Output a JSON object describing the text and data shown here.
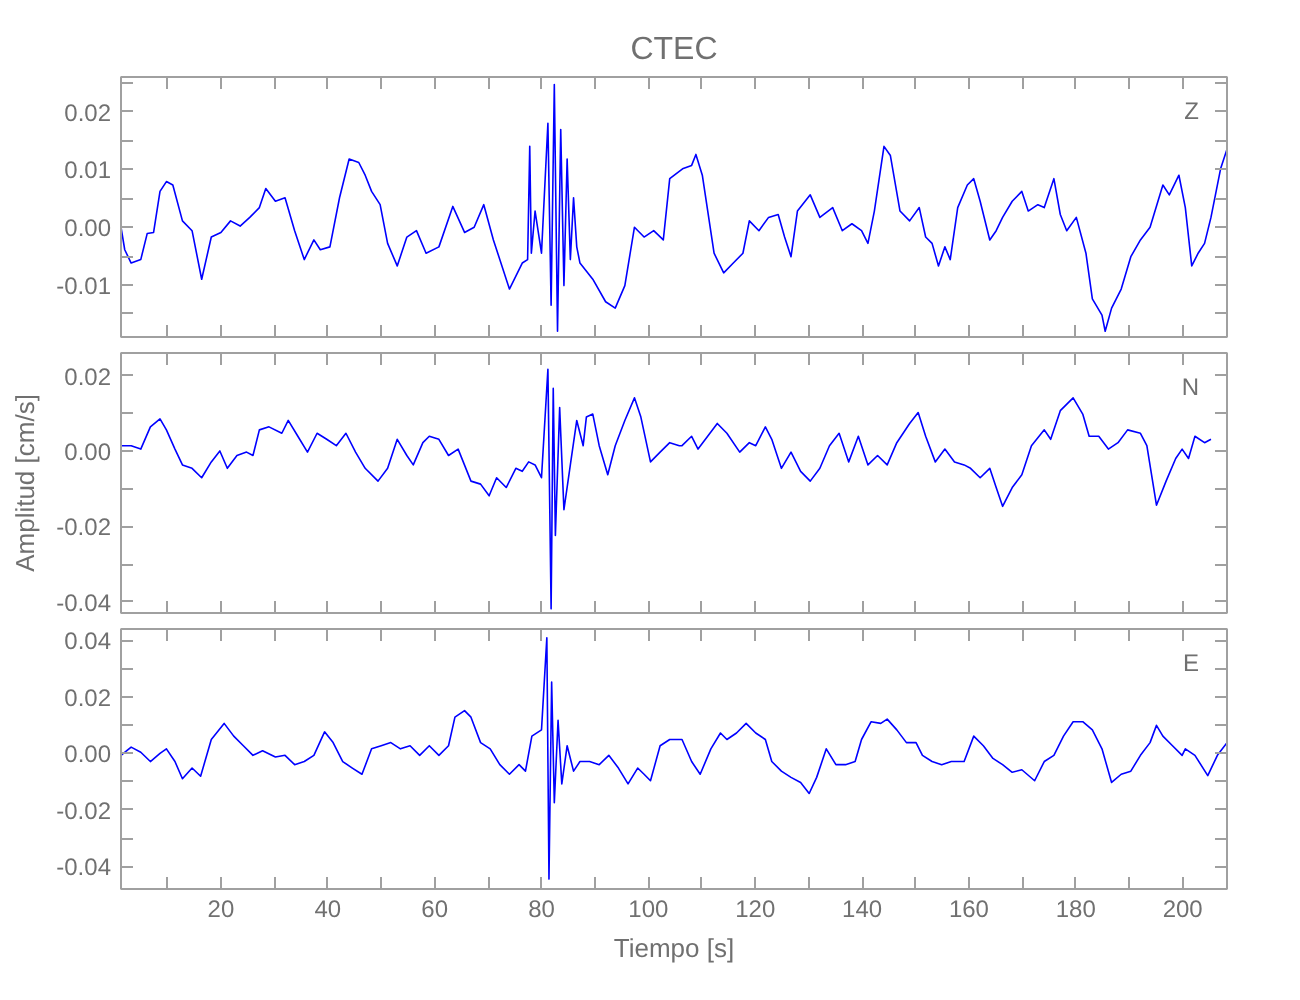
{
  "chart_data": [
    {
      "type": "line",
      "title": "CTEC",
      "annotations": [
        "Z"
      ],
      "tick_labels": "y",
      "xlim": [
        1.3,
        208.3
      ],
      "ylim": [
        -0.019,
        0.026
      ],
      "xticks": [
        {
          "value": 10,
          "label": null
        },
        {
          "value": 20,
          "label": null
        },
        {
          "value": 30,
          "label": null
        },
        {
          "value": 40,
          "label": null
        },
        {
          "value": 50,
          "label": null
        },
        {
          "value": 60,
          "label": null
        },
        {
          "value": 70,
          "label": null
        },
        {
          "value": 80,
          "label": null
        },
        {
          "value": 90,
          "label": null
        },
        {
          "value": 100,
          "label": null
        },
        {
          "value": 110,
          "label": null
        },
        {
          "value": 120,
          "label": null
        },
        {
          "value": 130,
          "label": null
        },
        {
          "value": 140,
          "label": null
        },
        {
          "value": 150,
          "label": null
        },
        {
          "value": 160,
          "label": null
        },
        {
          "value": 170,
          "label": null
        },
        {
          "value": 180,
          "label": null
        },
        {
          "value": 190,
          "label": null
        },
        {
          "value": 200,
          "label": null
        }
      ],
      "yticks": [
        {
          "value": -0.015,
          "label": null
        },
        -0.01,
        {
          "value": -0.005,
          "label": null
        },
        {
          "value": 0,
          "label": "0.00"
        },
        {
          "value": 0.005,
          "label": null
        },
        0.01,
        {
          "value": 0.015,
          "label": null
        },
        0.02,
        {
          "value": 0.025,
          "label": null
        }
      ],
      "x": [
        1.3,
        2.0,
        3.2,
        5.0,
        6.2,
        7.4,
        8.6,
        9.8,
        11.0,
        12.8,
        14.6,
        16.4,
        18.2,
        20.0,
        21.8,
        23.6,
        25.4,
        27.2,
        28.4,
        30.2,
        32.0,
        33.8,
        35.6,
        37.4,
        38.6,
        40.4,
        42.2,
        44.0,
        45.8,
        47.0,
        48.2,
        49.8,
        51.2,
        53.0,
        54.8,
        56.6,
        58.4,
        60.8,
        63.4,
        65.6,
        67.4,
        69.2,
        71.0,
        74.0,
        76.4,
        77.4,
        77.8,
        78.1,
        78.8,
        80.0,
        81.2,
        81.8,
        82.4,
        83.0,
        83.6,
        84.2,
        84.8,
        85.4,
        86.0,
        86.6,
        87.2,
        89.6,
        92.0,
        93.8,
        95.6,
        97.4,
        99.2,
        101.0,
        102.8,
        104.0,
        106.4,
        108.1,
        108.9,
        110.1,
        112.3,
        114.1,
        115.9,
        117.7,
        118.9,
        120.7,
        122.5,
        124.3,
        125.5,
        126.7,
        127.9,
        130.3,
        132.1,
        134.5,
        136.3,
        138.1,
        139.9,
        141.1,
        142.3,
        144.1,
        145.3,
        147.1,
        148.9,
        150.7,
        151.9,
        153.1,
        154.3,
        155.5,
        156.5,
        157.9,
        159.7,
        160.9,
        162.1,
        163.9,
        165.1,
        166.3,
        168.1,
        169.9,
        171.1,
        172.9,
        174.1,
        175.9,
        177.1,
        178.3,
        180.1,
        181.9,
        183.1,
        184.9,
        185.5,
        186.7,
        188.5,
        190.3,
        192.1,
        193.9,
        196.3,
        197.5,
        199.3,
        200.5,
        201.7,
        202.9,
        204.1,
        205.3,
        207.1,
        208.3
      ],
      "series": [
        {
          "color": "#0000ff",
          "values": [
            0,
            -0.0039,
            -0.0062,
            -0.0056,
            -0.0011,
            -0.0009,
            0.0062,
            0.0079,
            0.0073,
            0.0011,
            -0.0006,
            -0.009,
            -0.0017,
            -0.0009,
            0.0011,
            0.0002,
            0.0017,
            0.0034,
            0.0067,
            0.0045,
            0.0051,
            -0.0006,
            -0.0056,
            -0.0022,
            -0.0039,
            -0.0034,
            0.0051,
            0.0118,
            0.0112,
            0.009,
            0.0062,
            0.0039,
            -0.0028,
            -0.0067,
            -0.0017,
            -0.0006,
            -0.0045,
            -0.0034,
            0.0036,
            -0.0009,
            0,
            0.0039,
            -0.0022,
            -0.0107,
            -0.0062,
            -0.0056,
            0.014,
            -0.0045,
            0.0028,
            -0.0045,
            0.018,
            -0.0135,
            0.0247,
            -0.018,
            0.0169,
            -0.0101,
            0.0118,
            -0.0056,
            0.0051,
            -0.0034,
            -0.0062,
            -0.009,
            -0.0129,
            -0.014,
            -0.0101,
            0,
            -0.0017,
            -0.0006,
            -0.0022,
            0.0084,
            0.0101,
            0.0107,
            0.0126,
            0.009,
            -0.0045,
            -0.0079,
            -0.0062,
            -0.0045,
            0.0011,
            -0.0006,
            0.0017,
            0.0022,
            -0.0017,
            -0.0051,
            0.0028,
            0.0056,
            0.0017,
            0.0034,
            -0.0006,
            0.0006,
            -0.0006,
            -0.0028,
            0.0028,
            0.014,
            0.0124,
            0.0028,
            0.0011,
            0.0034,
            -0.0017,
            -0.0028,
            -0.0067,
            -0.0034,
            -0.0056,
            0.0034,
            0.0073,
            0.0084,
            0.0045,
            -0.0022,
            -0.0006,
            0.0017,
            0.0045,
            0.0062,
            0.0028,
            0.0039,
            0.0034,
            0.0084,
            0.0022,
            -0.0006,
            0.0017,
            -0.0045,
            -0.0124,
            -0.0152,
            -0.018,
            -0.014,
            -0.0107,
            -0.0051,
            -0.0022,
            0,
            0.0073,
            0.0056,
            0.009,
            0.0034,
            -0.0067,
            -0.0045,
            -0.0028,
            0.0017,
            0.0101,
            0.0135
          ]
        }
      ]
    },
    {
      "type": "line",
      "ylabel": "Amplitud [cm/s]",
      "annotations": [
        "N"
      ],
      "tick_labels": "y",
      "xlim": [
        1.3,
        208.3
      ],
      "ylim": [
        -0.043,
        0.026
      ],
      "xticks": [
        {
          "value": 10,
          "label": null
        },
        {
          "value": 20,
          "label": null
        },
        {
          "value": 30,
          "label": null
        },
        {
          "value": 40,
          "label": null
        },
        {
          "value": 50,
          "label": null
        },
        {
          "value": 60,
          "label": null
        },
        {
          "value": 70,
          "label": null
        },
        {
          "value": 80,
          "label": null
        },
        {
          "value": 90,
          "label": null
        },
        {
          "value": 100,
          "label": null
        },
        {
          "value": 110,
          "label": null
        },
        {
          "value": 120,
          "label": null
        },
        {
          "value": 130,
          "label": null
        },
        {
          "value": 140,
          "label": null
        },
        {
          "value": 150,
          "label": null
        },
        {
          "value": 160,
          "label": null
        },
        {
          "value": 170,
          "label": null
        },
        {
          "value": 180,
          "label": null
        },
        {
          "value": 190,
          "label": null
        },
        {
          "value": 200,
          "label": null
        }
      ],
      "yticks": [
        -0.04,
        {
          "value": -0.03,
          "label": null
        },
        -0.02,
        {
          "value": -0.01,
          "label": null
        },
        {
          "value": 0,
          "label": "0.00"
        },
        {
          "value": 0.01,
          "label": null
        },
        0.02
      ],
      "x": [
        1.3,
        3.2,
        5.0,
        6.8,
        8.6,
        9.8,
        11.4,
        12.8,
        14.6,
        16.4,
        18.2,
        19.8,
        21.2,
        23.0,
        24.8,
        26.0,
        27.2,
        29.0,
        31.4,
        32.6,
        34.4,
        36.2,
        38.0,
        39.8,
        41.6,
        43.4,
        45.2,
        47.0,
        49.4,
        51.2,
        53.0,
        54.8,
        56.0,
        57.8,
        59.0,
        60.8,
        62.6,
        64.4,
        66.8,
        68.6,
        70.2,
        71.6,
        73.4,
        75.2,
        76.4,
        77.6,
        78.8,
        80.0,
        81.2,
        81.8,
        82.2,
        82.6,
        83.4,
        84.2,
        85.4,
        86.6,
        87.8,
        88.4,
        89.6,
        90.8,
        92.4,
        93.8,
        95.6,
        97.4,
        98.6,
        100.4,
        102.2,
        104.0,
        105.8,
        106.3,
        108.1,
        109.3,
        111.1,
        112.9,
        114.7,
        117.1,
        118.9,
        120.1,
        121.9,
        123.1,
        124.9,
        126.7,
        128.5,
        130.3,
        132.1,
        133.9,
        135.7,
        137.5,
        139.3,
        141.1,
        142.9,
        144.7,
        146.5,
        148.9,
        150.5,
        151.9,
        153.7,
        155.5,
        157.3,
        159.1,
        160.3,
        162.1,
        163.9,
        165.1,
        166.3,
        168.1,
        169.9,
        171.7,
        174.1,
        175.3,
        177.1,
        179.5,
        181.3,
        182.5,
        184.3,
        186.1,
        187.9,
        189.7,
        192.1,
        193.3,
        195.1,
        196.9,
        198.7,
        199.9,
        201.1,
        202.3,
        204.1,
        205.3
      ],
      "series": [
        {
          "color": "#0000ff",
          "values": [
            0.0014,
            0.0014,
            0.0005,
            0.0064,
            0.0085,
            0.0056,
            0.0005,
            -0.0037,
            -0.0046,
            -0.0071,
            -0.0029,
            0,
            -0.0046,
            -0.0012,
            -0.0003,
            -0.0012,
            0.0056,
            0.0064,
            0.0047,
            0.0081,
            0.0039,
            -0.0003,
            0.0047,
            0.0031,
            0.0014,
            0.0047,
            -0.0003,
            -0.0046,
            -0.008,
            -0.0046,
            0.0031,
            -0.0012,
            -0.0037,
            0.0022,
            0.0039,
            0.0031,
            -0.0012,
            0.0005,
            -0.008,
            -0.0088,
            -0.0119,
            -0.0071,
            -0.0097,
            -0.0046,
            -0.0054,
            -0.0029,
            -0.0037,
            -0.0071,
            0.0217,
            -0.0419,
            0.0166,
            -0.0224,
            0.0115,
            -0.0156,
            -0.0037,
            0.0081,
            0.0014,
            0.009,
            0.0098,
            0.0014,
            -0.0063,
            0.0014,
            0.0081,
            0.0141,
            0.009,
            -0.0029,
            -0.0003,
            0.0022,
            0.0014,
            0.0014,
            0.0039,
            0.0005,
            0.0039,
            0.0073,
            0.0047,
            -0.0003,
            0.0022,
            0.0014,
            0.0064,
            0.0031,
            -0.0046,
            -0.0003,
            -0.0054,
            -0.008,
            -0.0046,
            0.0014,
            0.0047,
            -0.0029,
            0.0039,
            -0.0037,
            -0.0012,
            -0.0037,
            0.0022,
            0.0073,
            0.0102,
            0.0039,
            -0.0029,
            0.0005,
            -0.0029,
            -0.0037,
            -0.0046,
            -0.0071,
            -0.0046,
            -0.0097,
            -0.0147,
            -0.0097,
            -0.0063,
            0.0014,
            0.0056,
            0.0031,
            0.0107,
            0.0141,
            0.0098,
            0.0039,
            0.0039,
            0.0005,
            0.0022,
            0.0056,
            0.0047,
            0.0014,
            -0.0144,
            -0.008,
            -0.002,
            0.0005,
            -0.002,
            0.0039,
            0.0022,
            0.0031
          ]
        }
      ]
    },
    {
      "type": "line",
      "xlabel": "Tiempo [s]",
      "annotations": [
        "E"
      ],
      "xlim": [
        1.3,
        208.3
      ],
      "ylim": [
        -0.048,
        0.044
      ],
      "xticks": [
        {
          "value": 10,
          "label": null
        },
        20,
        {
          "value": 30,
          "label": null
        },
        40,
        {
          "value": 50,
          "label": null
        },
        60,
        {
          "value": 70,
          "label": null
        },
        80,
        {
          "value": 90,
          "label": null
        },
        100,
        {
          "value": 110,
          "label": null
        },
        120,
        {
          "value": 130,
          "label": null
        },
        140,
        {
          "value": 150,
          "label": null
        },
        160,
        {
          "value": 170,
          "label": null
        },
        180,
        {
          "value": 190,
          "label": null
        },
        200
      ],
      "yticks": [
        -0.04,
        {
          "value": -0.03,
          "label": null
        },
        -0.02,
        {
          "value": -0.01,
          "label": null
        },
        {
          "value": 0,
          "label": "0.00"
        },
        {
          "value": 0.01,
          "label": null
        },
        0.02,
        {
          "value": 0.03,
          "label": null
        },
        0.04
      ],
      "x": [
        1.3,
        3.2,
        5.0,
        6.8,
        8.6,
        9.8,
        11.4,
        12.8,
        14.6,
        16.2,
        18.2,
        20.6,
        22.4,
        24.2,
        26.0,
        27.8,
        30.2,
        32.0,
        33.8,
        35.6,
        37.4,
        39.4,
        41.0,
        42.8,
        44.6,
        46.4,
        48.2,
        50.0,
        51.8,
        53.6,
        55.4,
        57.2,
        59.0,
        60.8,
        62.6,
        63.8,
        65.6,
        66.8,
        68.6,
        70.4,
        72.2,
        74.0,
        75.8,
        77.0,
        78.2,
        80.0,
        81.0,
        81.4,
        81.9,
        82.4,
        83.1,
        83.8,
        84.8,
        86.0,
        87.2,
        89.0,
        90.8,
        92.6,
        94.4,
        96.2,
        98.0,
        99.2,
        100.4,
        102.2,
        104.0,
        105.8,
        106.3,
        108.1,
        109.7,
        111.7,
        113.5,
        114.7,
        116.5,
        118.3,
        120.1,
        121.9,
        123.1,
        124.9,
        126.7,
        128.5,
        130.1,
        131.5,
        133.3,
        135.1,
        136.9,
        138.7,
        139.9,
        141.7,
        143.5,
        144.7,
        146.5,
        148.3,
        150.1,
        151.3,
        153.1,
        154.9,
        156.7,
        159.1,
        160.9,
        162.7,
        164.5,
        166.3,
        168.1,
        169.9,
        172.3,
        174.1,
        175.9,
        177.7,
        179.5,
        181.3,
        183.1,
        184.9,
        186.7,
        188.5,
        190.3,
        192.1,
        193.9,
        195.1,
        196.3,
        198.1,
        199.9,
        200.5,
        202.3,
        204.7,
        206.5,
        208.3
      ],
      "series": [
        {
          "color": "#0000ff",
          "values": [
            -0.0007,
            0.0022,
            0.0004,
            -0.0029,
            0,
            0.0016,
            -0.0029,
            -0.009,
            -0.0052,
            -0.0081,
            0.0049,
            0.0106,
            0.0061,
            0.0027,
            -0.0007,
            0.0009,
            -0.0013,
            -0.0007,
            -0.004,
            -0.0029,
            -0.0007,
            0.0076,
            0.0038,
            -0.0029,
            -0.0052,
            -0.0074,
            0.0016,
            0.0027,
            0.0038,
            0.0016,
            0.0027,
            -0.0007,
            0.0027,
            -0.0007,
            0.0027,
            0.0128,
            0.0151,
            0.0128,
            0.0038,
            0.0016,
            -0.004,
            -0.0074,
            -0.004,
            -0.0063,
            0.0061,
            0.0083,
            0.0409,
            -0.0445,
            0.0252,
            -0.0175,
            0.0117,
            -0.0108,
            0.0027,
            -0.0063,
            -0.0029,
            -0.0029,
            -0.004,
            -0.0007,
            -0.0052,
            -0.0108,
            -0.0052,
            -0.0074,
            -0.0097,
            0.0027,
            0.0049,
            0.0049,
            0.0049,
            -0.0029,
            -0.0074,
            0.0016,
            0.0072,
            0.0049,
            0.0072,
            0.0106,
            0.0072,
            0.0049,
            -0.0029,
            -0.0063,
            -0.0085,
            -0.0103,
            -0.0142,
            -0.0085,
            0.0016,
            -0.004,
            -0.004,
            -0.0029,
            0.0049,
            0.0112,
            0.0106,
            0.0121,
            0.0083,
            0.0038,
            0.0038,
            -0.0007,
            -0.0029,
            -0.004,
            -0.0029,
            -0.0029,
            0.0061,
            0.0027,
            -0.0018,
            -0.004,
            -0.0067,
            -0.0058,
            -0.0097,
            -0.0029,
            -0.0007,
            0.0061,
            0.0112,
            0.0112,
            0.0083,
            0.0016,
            -0.0103,
            -0.0074,
            -0.0063,
            -0.0007,
            0.0038,
            0.0099,
            0.0061,
            0.0027,
            -0.0007,
            0.0016,
            -0.0007,
            -0.0079,
            -0.0007,
            0.0038
          ]
        }
      ]
    }
  ]
}
